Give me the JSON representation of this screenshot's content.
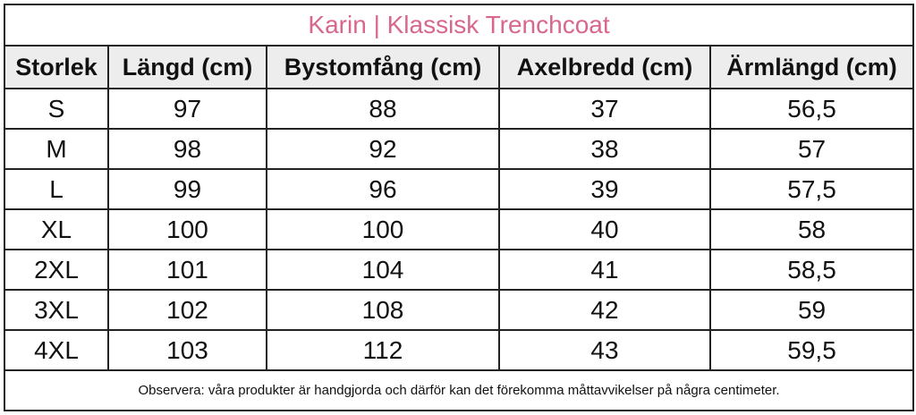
{
  "header": {
    "title": "Karin | Klassisk Trenchcoat"
  },
  "table": {
    "columns": [
      "Storlek",
      "Längd (cm)",
      "Bystomfång (cm)",
      "Axelbredd (cm)",
      "Ärmlängd (cm)"
    ],
    "rows": [
      [
        "S",
        "97",
        "88",
        "37",
        "56,5"
      ],
      [
        "M",
        "98",
        "92",
        "38",
        "57"
      ],
      [
        "L",
        "99",
        "96",
        "39",
        "57,5"
      ],
      [
        "XL",
        "100",
        "100",
        "40",
        "58"
      ],
      [
        "2XL",
        "101",
        "104",
        "41",
        "58,5"
      ],
      [
        "3XL",
        "102",
        "108",
        "42",
        "59"
      ],
      [
        "4XL",
        "103",
        "112",
        "43",
        "59,5"
      ]
    ]
  },
  "footer": {
    "note": "Observera: våra produkter är handgjorda och därför kan det förekomma måttavvikelser på några centimeter."
  }
}
